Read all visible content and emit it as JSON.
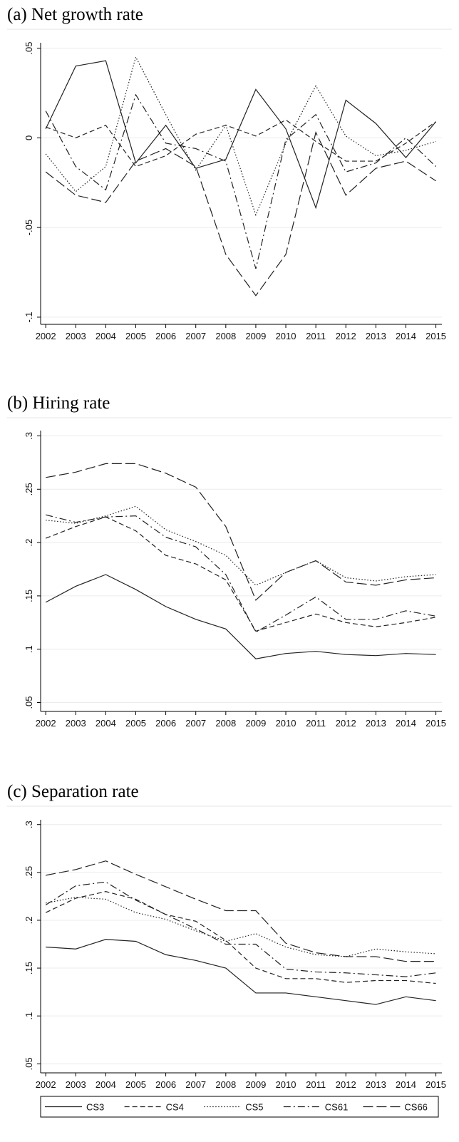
{
  "chart_data": [
    {
      "type": "line",
      "title": "(a) Net growth rate",
      "x": [
        2002,
        2003,
        2004,
        2005,
        2006,
        2007,
        2008,
        2009,
        2010,
        2011,
        2012,
        2013,
        2014,
        2015
      ],
      "xlim": [
        2001.83,
        2015.2
      ],
      "xticks": [
        2002,
        2003,
        2004,
        2005,
        2006,
        2007,
        2008,
        2009,
        2010,
        2011,
        2012,
        2013,
        2014,
        2015
      ],
      "ylim": [
        -0.104,
        0.053
      ],
      "yticks": [
        {
          "value": -0.1,
          "label": "-.1"
        },
        {
          "value": -0.05,
          "label": "-.05"
        },
        0,
        {
          "value": 0.05,
          "label": ".05"
        }
      ],
      "grid": true,
      "series": [
        {
          "values": [
            0.005,
            0.04,
            0.043,
            -0.014,
            0.007,
            -0.017,
            -0.012,
            0.027,
            0.005,
            -0.039,
            0.021,
            0.008,
            -0.011,
            0.009
          ]
        },
        {
          "values": [
            0.006,
            0.0,
            0.007,
            -0.016,
            -0.01,
            0.002,
            0.007,
            0.001,
            0.01,
            -0.002,
            -0.013,
            -0.013,
            -0.003,
            0.009
          ]
        },
        {
          "values": [
            -0.009,
            -0.03,
            -0.016,
            0.045,
            0.013,
            -0.018,
            0.007,
            -0.043,
            -0.003,
            0.029,
            0.001,
            -0.01,
            -0.007,
            -0.002
          ]
        },
        {
          "values": [
            0.015,
            -0.016,
            -0.029,
            0.024,
            -0.003,
            -0.006,
            -0.013,
            -0.073,
            -0.001,
            0.013,
            -0.019,
            -0.014,
            0.0,
            -0.016
          ]
        },
        {
          "values": [
            -0.019,
            -0.032,
            -0.036,
            -0.013,
            -0.006,
            -0.016,
            -0.065,
            -0.088,
            -0.065,
            0.003,
            -0.032,
            -0.017,
            -0.013,
            -0.024
          ]
        }
      ]
    },
    {
      "type": "line",
      "title": "(b) Hiring rate",
      "x": [
        2002,
        2003,
        2004,
        2005,
        2006,
        2007,
        2008,
        2009,
        2010,
        2011,
        2012,
        2013,
        2014,
        2015
      ],
      "xlim": [
        2001.83,
        2015.2
      ],
      "xticks": [
        2002,
        2003,
        2004,
        2005,
        2006,
        2007,
        2008,
        2009,
        2010,
        2011,
        2012,
        2013,
        2014,
        2015
      ],
      "ylim": [
        0.045,
        0.305
      ],
      "yticks": [
        {
          "value": 0.05,
          "label": ".05"
        },
        {
          "value": 0.1,
          "label": ".1"
        },
        {
          "value": 0.15,
          "label": ".15"
        },
        {
          "value": 0.2,
          "label": ".2"
        },
        {
          "value": 0.25,
          "label": ".25"
        },
        {
          "value": 0.3,
          "label": ".3"
        }
      ],
      "grid": true,
      "series": [
        {
          "values": [
            0.144,
            0.159,
            0.17,
            0.156,
            0.14,
            0.128,
            0.119,
            0.091,
            0.096,
            0.098,
            0.095,
            0.094,
            0.096,
            0.095
          ]
        },
        {
          "values": [
            0.204,
            0.215,
            0.224,
            0.211,
            0.188,
            0.18,
            0.165,
            0.117,
            0.125,
            0.133,
            0.125,
            0.121,
            0.125,
            0.13
          ]
        },
        {
          "values": [
            0.221,
            0.218,
            0.225,
            0.234,
            0.212,
            0.201,
            0.188,
            0.16,
            0.172,
            0.183,
            0.167,
            0.164,
            0.168,
            0.17
          ]
        },
        {
          "values": [
            0.226,
            0.219,
            0.224,
            0.225,
            0.205,
            0.196,
            0.17,
            0.116,
            0.132,
            0.149,
            0.128,
            0.128,
            0.136,
            0.131
          ]
        },
        {
          "values": [
            0.261,
            0.266,
            0.274,
            0.274,
            0.265,
            0.252,
            0.215,
            0.146,
            0.172,
            0.183,
            0.163,
            0.16,
            0.165,
            0.167
          ]
        }
      ]
    },
    {
      "type": "line",
      "title": "(c) Separation rate",
      "x": [
        2002,
        2003,
        2004,
        2005,
        2006,
        2007,
        2008,
        2009,
        2010,
        2011,
        2012,
        2013,
        2014,
        2015
      ],
      "xlim": [
        2001.83,
        2015.2
      ],
      "xticks": [
        2002,
        2003,
        2004,
        2005,
        2006,
        2007,
        2008,
        2009,
        2010,
        2011,
        2012,
        2013,
        2014,
        2015
      ],
      "ylim": [
        0.045,
        0.305
      ],
      "yticks": [
        {
          "value": 0.05,
          "label": ".05"
        },
        {
          "value": 0.1,
          "label": ".1"
        },
        {
          "value": 0.15,
          "label": ".15"
        },
        {
          "value": 0.2,
          "label": ".2"
        },
        {
          "value": 0.25,
          "label": ".25"
        },
        {
          "value": 0.3,
          "label": ".3"
        }
      ],
      "grid": true,
      "series": [
        {
          "values": [
            0.172,
            0.17,
            0.18,
            0.178,
            0.164,
            0.158,
            0.15,
            0.124,
            0.124,
            0.12,
            0.116,
            0.112,
            0.12,
            0.116
          ]
        },
        {
          "values": [
            0.208,
            0.223,
            0.23,
            0.222,
            0.206,
            0.199,
            0.179,
            0.15,
            0.139,
            0.139,
            0.135,
            0.137,
            0.137,
            0.134
          ]
        },
        {
          "values": [
            0.218,
            0.224,
            0.222,
            0.208,
            0.201,
            0.189,
            0.178,
            0.186,
            0.172,
            0.164,
            0.162,
            0.17,
            0.167,
            0.165
          ]
        },
        {
          "values": [
            0.216,
            0.236,
            0.24,
            0.221,
            0.206,
            0.191,
            0.175,
            0.175,
            0.149,
            0.146,
            0.145,
            0.143,
            0.141,
            0.145
          ]
        },
        {
          "values": [
            0.247,
            0.253,
            0.262,
            0.248,
            0.235,
            0.222,
            0.21,
            0.21,
            0.176,
            0.166,
            0.162,
            0.162,
            0.157,
            0.157
          ]
        }
      ]
    }
  ],
  "legend": {
    "entries": [
      "CS3",
      "CS4",
      "CS5",
      "CS61",
      "CS66"
    ],
    "styles": [
      "solid",
      "dash",
      "dot",
      "dashdot",
      "longdash"
    ],
    "color": "#222222"
  }
}
